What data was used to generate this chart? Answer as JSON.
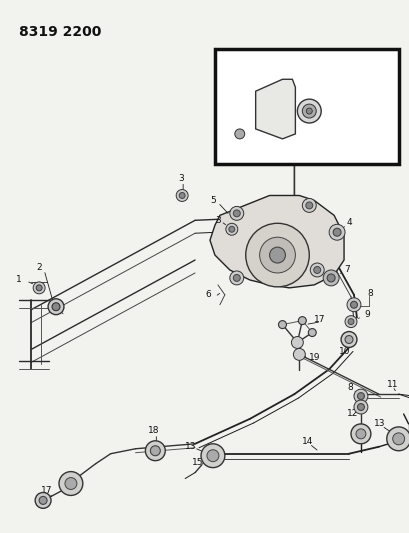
{
  "title": "8319 2200",
  "bg_color": "#f2f2ee",
  "line_color": "#1a1a1a",
  "font_size_title": 10,
  "font_size_label": 6.5
}
